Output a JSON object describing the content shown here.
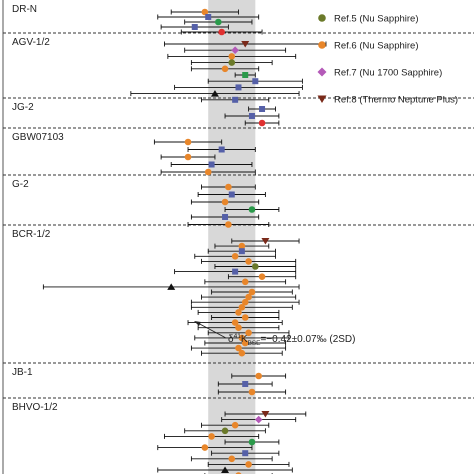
{
  "chart_data": {
    "type": "scatter",
    "orientation": "horizontal-dot-plot",
    "band": {
      "center": -0.42,
      "half_width": 0.07
    },
    "annotation": {
      "prefix": "δ",
      "sup": "41",
      "k": "K",
      "sub": "BSE",
      "rest": "=−0.42±0.07‰ (2SD)"
    },
    "x_range": [
      -1.1,
      0.3
    ],
    "legend_position": "top-right",
    "legend": [
      {
        "marker": "circle",
        "color": "#6b7a2a",
        "label": "Ref.5 (Nu Sapphire)"
      },
      {
        "marker": "circle",
        "color": "#e8862a",
        "label": "Ref.6 (Nu Sapphire)"
      },
      {
        "marker": "diamond",
        "color": "#b45ab8",
        "label": "Ref.7 (Nu 1700 Sapphire)"
      },
      {
        "marker": "triangle-down",
        "color": "#7a2a1a",
        "label": "Ref.8 (Thermo Neptune Plus)"
      }
    ],
    "groups": [
      {
        "name": "DR-N",
        "points": [
          {
            "x": -0.5,
            "err": 0.1,
            "marker": "circle",
            "color": "#e8862a"
          },
          {
            "x": -0.49,
            "err": 0.15,
            "marker": "square",
            "color": "#5560a8"
          },
          {
            "x": -0.46,
            "err": 0.1,
            "marker": "circle",
            "color": "#2a9a4a"
          },
          {
            "x": -0.53,
            "err": 0.1,
            "marker": "square",
            "color": "#5560a8"
          },
          {
            "x": -0.45,
            "err": 0.12,
            "marker": "circle",
            "color": "#e03030"
          }
        ]
      },
      {
        "name": "AGV-1/2",
        "points": [
          {
            "x": -0.38,
            "err": 0.24,
            "marker": "triangle-down",
            "color": "#7a2a1a"
          },
          {
            "x": -0.41,
            "err": 0.15,
            "marker": "diamond",
            "color": "#b45ab8"
          },
          {
            "x": -0.42,
            "err": 0.19,
            "marker": "circle",
            "color": "#e8862a"
          },
          {
            "x": -0.42,
            "err": 0.12,
            "marker": "circle",
            "color": "#6b7a2a"
          },
          {
            "x": -0.44,
            "err": 0.1,
            "marker": "circle",
            "color": "#e8862a"
          },
          {
            "x": -0.38,
            "err": 0.03,
            "marker": "square",
            "color": "#2a9a4a"
          },
          {
            "x": -0.35,
            "err": 0.14,
            "marker": "square",
            "color": "#5560a8"
          },
          {
            "x": -0.4,
            "err": 0.19,
            "marker": "square",
            "color": "#5560a8"
          },
          {
            "x": -0.47,
            "err": 0.25,
            "marker": "triangle",
            "color": "#111111"
          },
          {
            "x": -0.41,
            "err": 0.1,
            "marker": "square",
            "color": "#5560a8"
          }
        ]
      },
      {
        "name": "JG-2",
        "points": [
          {
            "x": -0.33,
            "err": 0.04,
            "marker": "square",
            "color": "#5560a8"
          },
          {
            "x": -0.36,
            "err": 0.08,
            "marker": "square",
            "color": "#5560a8"
          },
          {
            "x": -0.33,
            "err": 0.05,
            "marker": "circle",
            "color": "#e03030"
          }
        ]
      },
      {
        "name": "GBW07103",
        "points": [
          {
            "x": -0.55,
            "err": 0.1,
            "marker": "circle",
            "color": "#e8862a"
          },
          {
            "x": -0.45,
            "err": 0.1,
            "marker": "square",
            "color": "#5560a8"
          },
          {
            "x": -0.55,
            "err": 0.08,
            "marker": "circle",
            "color": "#e8862a"
          },
          {
            "x": -0.48,
            "err": 0.12,
            "marker": "square",
            "color": "#5560a8"
          },
          {
            "x": -0.49,
            "err": 0.14,
            "marker": "circle",
            "color": "#e8862a"
          }
        ]
      },
      {
        "name": "G-2",
        "points": [
          {
            "x": -0.43,
            "err": 0.08,
            "marker": "circle",
            "color": "#e8862a"
          },
          {
            "x": -0.42,
            "err": 0.1,
            "marker": "square",
            "color": "#5560a8"
          },
          {
            "x": -0.44,
            "err": 0.1,
            "marker": "circle",
            "color": "#e8862a"
          },
          {
            "x": -0.36,
            "err": 0.08,
            "marker": "circle",
            "color": "#2a9a4a"
          },
          {
            "x": -0.44,
            "err": 0.1,
            "marker": "square",
            "color": "#5560a8"
          },
          {
            "x": -0.43,
            "err": 0.12,
            "marker": "circle",
            "color": "#e8862a"
          }
        ]
      },
      {
        "name": "BCR-1/2",
        "points": [
          {
            "x": -0.32,
            "err": 0.1,
            "marker": "triangle-down",
            "color": "#7a2a1a"
          },
          {
            "x": -0.39,
            "err": 0.08,
            "marker": "circle",
            "color": "#e8862a"
          },
          {
            "x": -0.39,
            "err": 0.1,
            "marker": "square",
            "color": "#5560a8"
          },
          {
            "x": -0.41,
            "err": 0.12,
            "marker": "circle",
            "color": "#e8862a"
          },
          {
            "x": -0.37,
            "err": 0.14,
            "marker": "circle",
            "color": "#e8862a"
          },
          {
            "x": -0.35,
            "err": 0.12,
            "marker": "circle",
            "color": "#6b7a2a"
          },
          {
            "x": -0.41,
            "err": 0.18,
            "marker": "square",
            "color": "#5560a8"
          },
          {
            "x": -0.33,
            "err": 0.1,
            "marker": "circle",
            "color": "#e8862a"
          },
          {
            "x": -0.38,
            "err": 0.12,
            "marker": "circle",
            "color": "#e8862a"
          },
          {
            "x": -0.6,
            "err": 0.38,
            "marker": "triangle",
            "color": "#111111"
          },
          {
            "x": -0.36,
            "err": 0.12,
            "marker": "circle",
            "color": "#e8862a"
          },
          {
            "x": -0.37,
            "err": 0.14,
            "marker": "circle",
            "color": "#e8862a"
          },
          {
            "x": -0.38,
            "err": 0.16,
            "marker": "circle",
            "color": "#e8862a"
          },
          {
            "x": -0.39,
            "err": 0.15,
            "marker": "circle",
            "color": "#e8862a"
          },
          {
            "x": -0.4,
            "err": 0.12,
            "marker": "circle",
            "color": "#e8862a"
          },
          {
            "x": -0.38,
            "err": 0.1,
            "marker": "circle",
            "color": "#e8862a"
          },
          {
            "x": -0.41,
            "err": 0.14,
            "marker": "circle",
            "color": "#e8862a"
          },
          {
            "x": -0.4,
            "err": 0.12,
            "marker": "circle",
            "color": "#e8862a"
          },
          {
            "x": -0.37,
            "err": 0.12,
            "marker": "circle",
            "color": "#e8862a"
          },
          {
            "x": -0.39,
            "err": 0.14,
            "marker": "circle",
            "color": "#e8862a"
          },
          {
            "x": -0.38,
            "err": 0.12,
            "marker": "circle",
            "color": "#e8862a"
          },
          {
            "x": -0.4,
            "err": 0.14,
            "marker": "circle",
            "color": "#e8862a"
          },
          {
            "x": -0.39,
            "err": 0.12,
            "marker": "circle",
            "color": "#e8862a"
          }
        ]
      },
      {
        "name": "JB-1",
        "points": [
          {
            "x": -0.34,
            "err": 0.08,
            "marker": "circle",
            "color": "#e8862a"
          },
          {
            "x": -0.38,
            "err": 0.08,
            "marker": "square",
            "color": "#5560a8"
          },
          {
            "x": -0.36,
            "err": 0.1,
            "marker": "circle",
            "color": "#e8862a"
          }
        ]
      },
      {
        "name": "BHVO-1/2",
        "points": [
          {
            "x": -0.32,
            "err": 0.12,
            "marker": "triangle-down",
            "color": "#7a2a1a"
          },
          {
            "x": -0.34,
            "err": 0.11,
            "marker": "diamond",
            "color": "#b45ab8"
          },
          {
            "x": -0.41,
            "err": 0.1,
            "marker": "circle",
            "color": "#e8862a"
          },
          {
            "x": -0.44,
            "err": 0.12,
            "marker": "circle",
            "color": "#6b7a2a"
          },
          {
            "x": -0.48,
            "err": 0.14,
            "marker": "circle",
            "color": "#e8862a"
          },
          {
            "x": -0.36,
            "err": 0.08,
            "marker": "circle",
            "color": "#2a9a4a"
          },
          {
            "x": -0.5,
            "err": 0.14,
            "marker": "circle",
            "color": "#e8862a"
          },
          {
            "x": -0.38,
            "err": 0.1,
            "marker": "square",
            "color": "#5560a8"
          },
          {
            "x": -0.42,
            "err": 0.12,
            "marker": "circle",
            "color": "#e8862a"
          },
          {
            "x": -0.37,
            "err": 0.12,
            "marker": "circle",
            "color": "#e8862a"
          },
          {
            "x": -0.44,
            "err": 0.2,
            "marker": "triangle",
            "color": "#111111"
          },
          {
            "x": -0.4,
            "err": 0.1,
            "marker": "circle",
            "color": "#e8862a"
          }
        ]
      }
    ]
  }
}
